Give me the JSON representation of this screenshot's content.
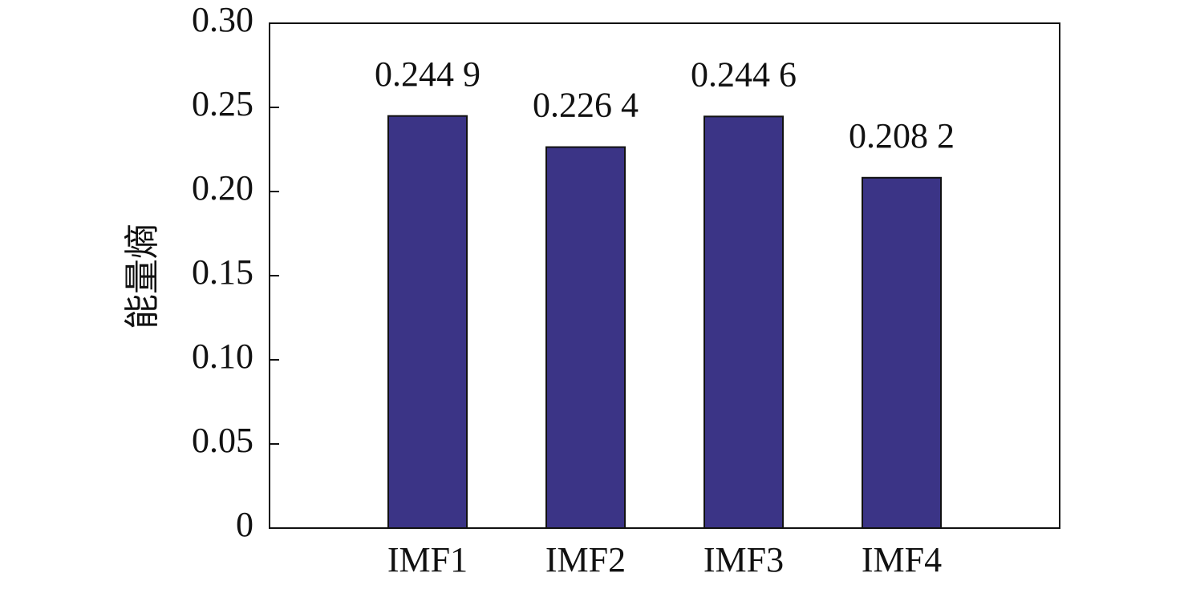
{
  "chart_data": {
    "type": "bar",
    "ylabel": "能量熵",
    "categories": [
      "IMF1",
      "IMF2",
      "IMF3",
      "IMF4"
    ],
    "values": [
      0.2449,
      0.2264,
      0.2446,
      0.2082
    ],
    "value_labels": [
      "0.244 9",
      "0.226 4",
      "0.244 6",
      "0.208 2"
    ],
    "color": "#3b3486",
    "ylim": [
      0,
      0.3
    ],
    "yticks": [
      0,
      0.05,
      {
        "value": 0.1,
        "label": "0.10"
      },
      0.15,
      {
        "value": 0.2,
        "label": "0.20"
      },
      0.25,
      {
        "value": 0.3,
        "label": "0.30"
      }
    ],
    "grid": false
  }
}
